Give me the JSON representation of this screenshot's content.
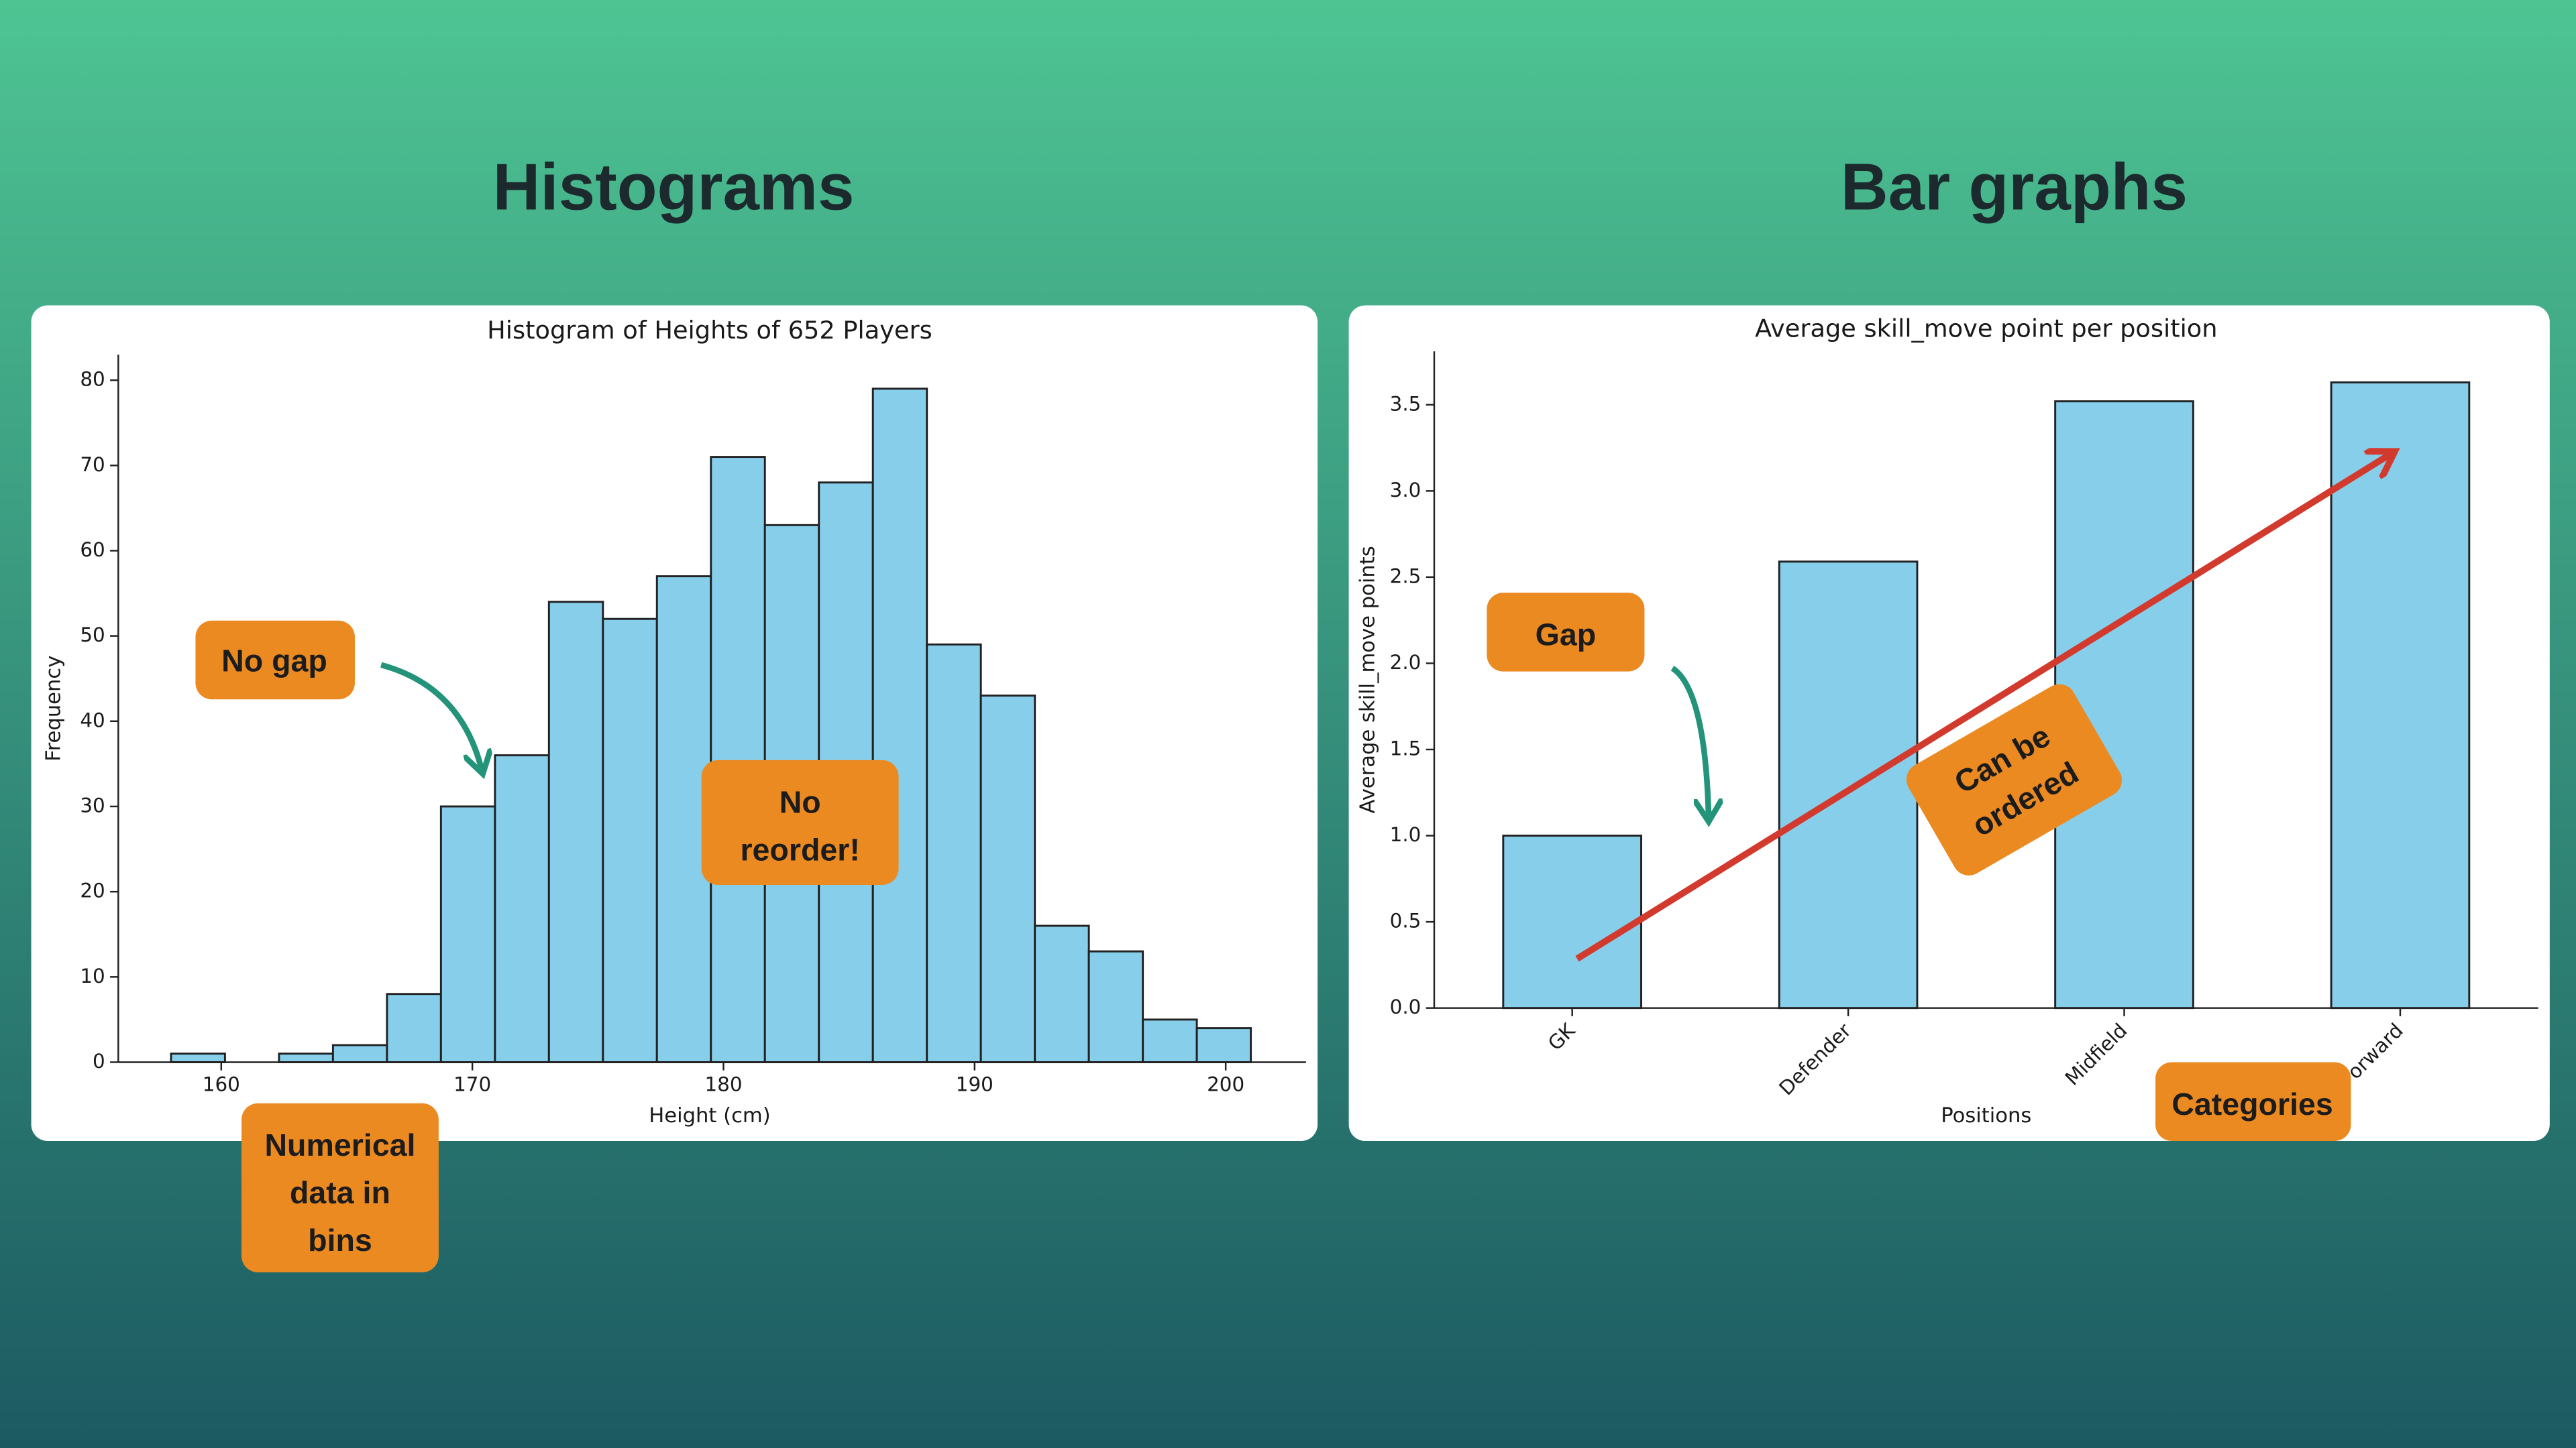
{
  "headings": [
    "Histograms",
    "Bar graphs"
  ],
  "chart_data": [
    {
      "type": "histogram",
      "title": "Histogram of Heights of 652 Players",
      "x_label": "Height (cm)",
      "y_label": "Frequency",
      "bins": [
        158,
        160.15,
        162.3,
        164.45,
        166.6,
        168.75,
        170.9,
        173.05,
        175.2,
        177.35,
        179.5,
        181.65,
        183.8,
        185.95,
        188.1,
        190.25,
        192.4,
        194.55,
        196.7,
        198.85,
        201
      ],
      "values": [
        1,
        0,
        1,
        2,
        8,
        30,
        36,
        54,
        52,
        57,
        71,
        63,
        68,
        79,
        49,
        43,
        16,
        13,
        5,
        4
      ],
      "color": "#87ceeb",
      "edge_color": "#222222",
      "xlim": [
        155.9,
        203.2
      ],
      "xticks": [
        160,
        170,
        180,
        190,
        200
      ],
      "ylim": [
        0,
        83
      ],
      "yticks": [
        0,
        10,
        20,
        30,
        40,
        50,
        60,
        70,
        80
      ],
      "annotations": [
        [
          "No gap"
        ],
        [
          "No",
          "reorder!"
        ],
        [
          "Numerical",
          "data in",
          "bins"
        ]
      ]
    },
    {
      "type": "bar",
      "title": "Average skill_move point per position",
      "x_label": "Positions",
      "y_label": "Average skill_move points",
      "categories": [
        "GK",
        "Defender",
        "Midfield",
        "Forward"
      ],
      "values": [
        1.0,
        2.59,
        3.52,
        3.63
      ],
      "color": "#87ceeb",
      "edge_color": "#222222",
      "ylim": [
        0,
        3.81
      ],
      "yticks": [
        {
          "value": 0,
          "label": "0.0"
        },
        0.5,
        {
          "value": 1,
          "label": "1.0"
        },
        1.5,
        {
          "value": 2,
          "label": "2.0"
        },
        2.5,
        {
          "value": 3,
          "label": "3.0"
        },
        3.5
      ],
      "annotations": [
        [
          "Gap"
        ],
        [
          "Can be",
          "ordered"
        ],
        [
          "Categories"
        ]
      ]
    }
  ]
}
